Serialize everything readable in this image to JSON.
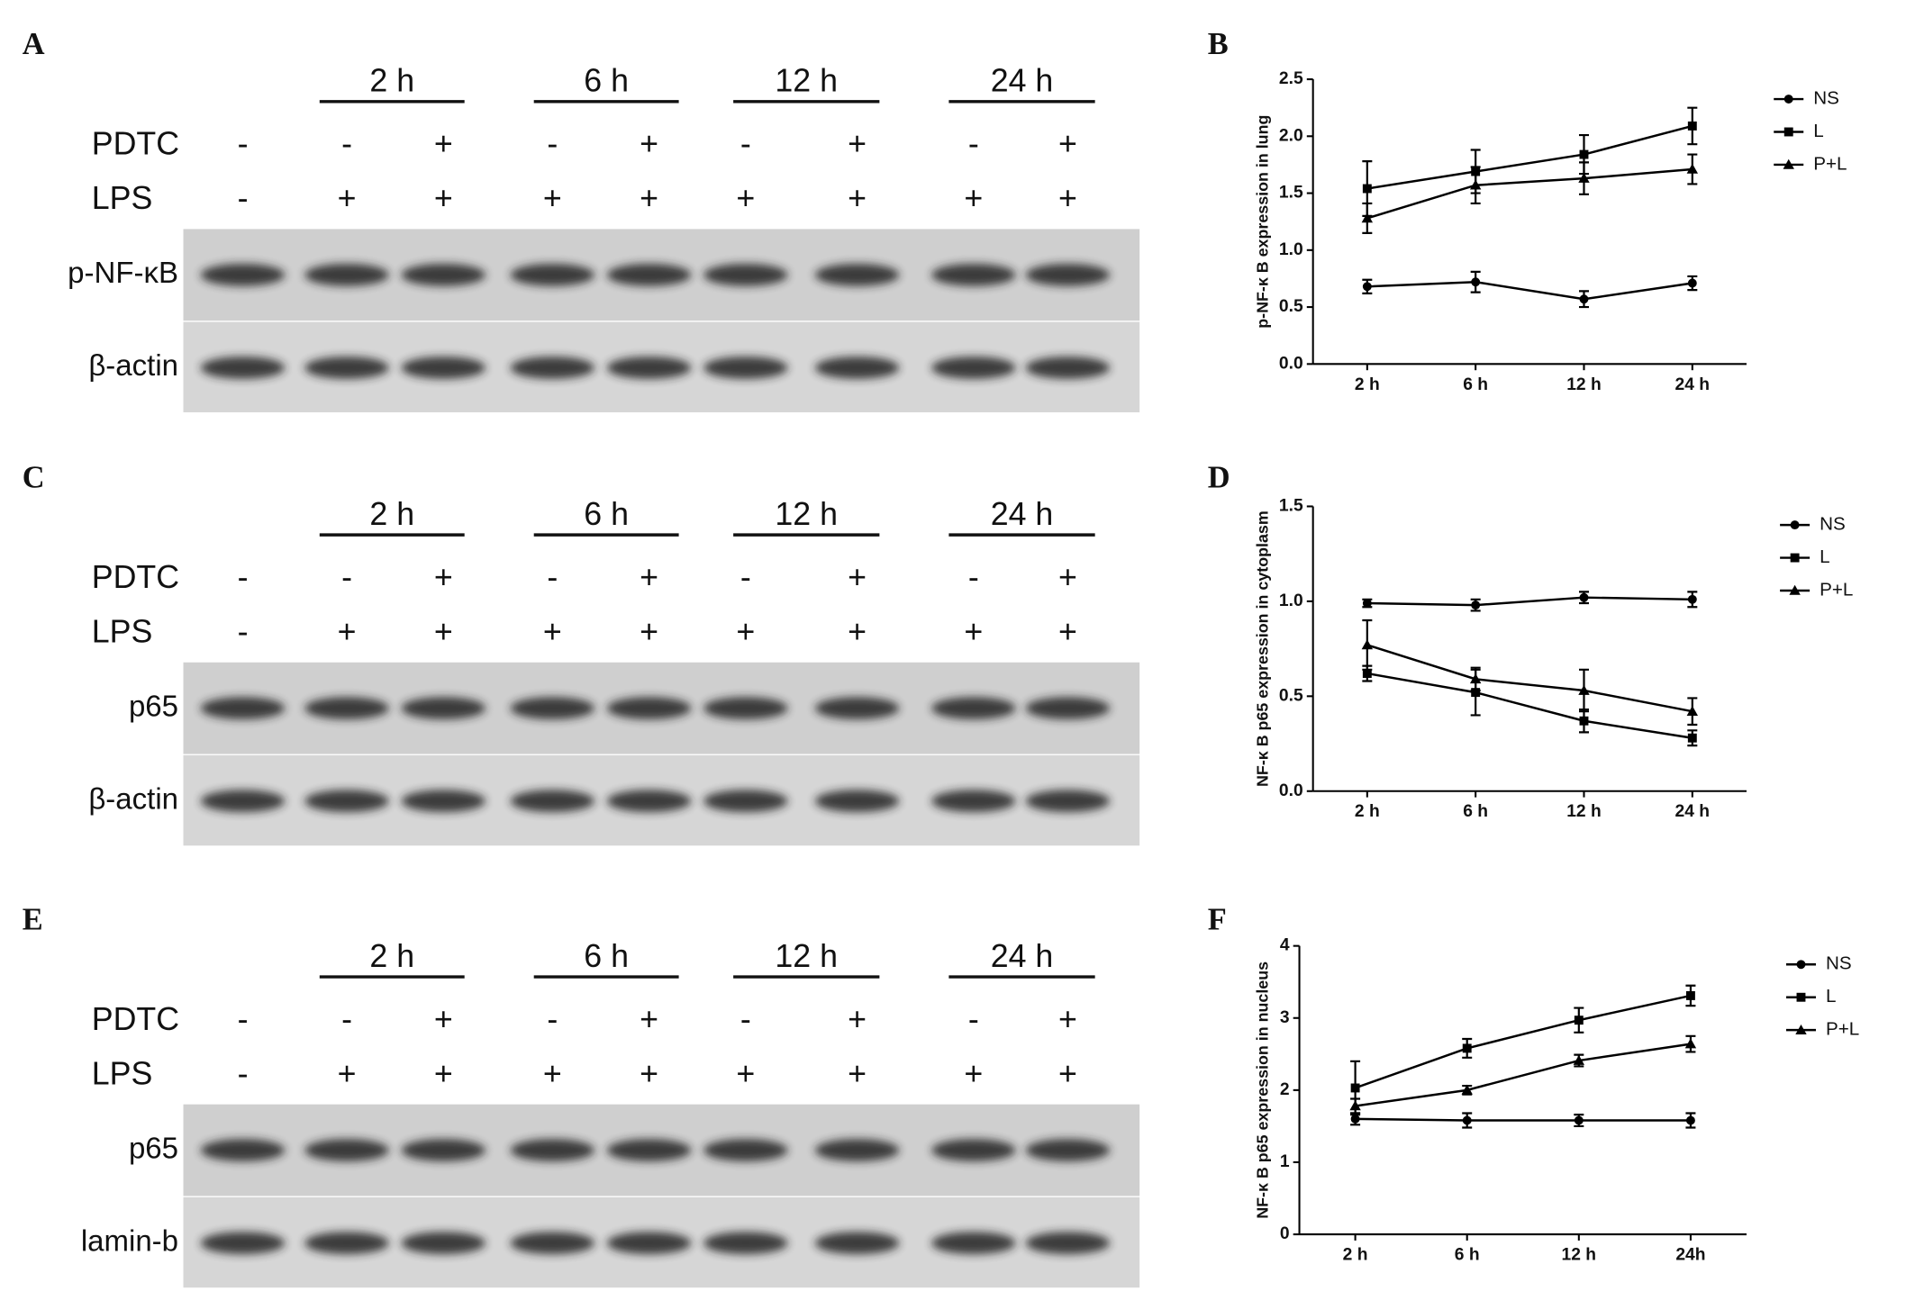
{
  "blots": [
    {
      "panel": "A",
      "timepoints": [
        "2 h",
        "6 h",
        "12 h",
        "24 h"
      ],
      "rows": [
        {
          "label": "PDTC",
          "signs": [
            "-",
            "-",
            "+",
            "-",
            "+",
            "-",
            "+",
            "-",
            "+"
          ]
        },
        {
          "label": "LPS",
          "signs": [
            "-",
            "+",
            "+",
            "+",
            "+",
            "+",
            "+",
            "+",
            "+"
          ]
        }
      ],
      "bands": [
        "p-NF-κB",
        "β-actin"
      ]
    },
    {
      "panel": "C",
      "timepoints": [
        "2 h",
        "6 h",
        "12 h",
        "24 h"
      ],
      "rows": [
        {
          "label": "PDTC",
          "signs": [
            "-",
            "-",
            "+",
            "-",
            "+",
            "-",
            "+",
            "-",
            "+"
          ]
        },
        {
          "label": "LPS",
          "signs": [
            "-",
            "+",
            "+",
            "+",
            "+",
            "+",
            "+",
            "+",
            "+"
          ]
        }
      ],
      "bands": [
        "p65",
        "β-actin"
      ]
    },
    {
      "panel": "E",
      "timepoints": [
        "2 h",
        "6 h",
        "12 h",
        "24 h"
      ],
      "rows": [
        {
          "label": "PDTC",
          "signs": [
            "-",
            "-",
            "+",
            "-",
            "+",
            "-",
            "+",
            "-",
            "+"
          ]
        },
        {
          "label": "LPS",
          "signs": [
            "-",
            "+",
            "+",
            "+",
            "+",
            "+",
            "+",
            "+",
            "+"
          ]
        }
      ],
      "bands": [
        "p65",
        "lamin-b"
      ]
    }
  ],
  "chart_data": [
    {
      "type": "line",
      "panel": "B",
      "ylabel": "p-NF-κ B expression in lung",
      "categories": [
        "2 h",
        "6 h",
        "12 h",
        "24 h"
      ],
      "series": [
        {
          "name": "NS",
          "marker": "circle",
          "color": "#000000",
          "values": [
            0.68,
            0.72,
            0.57,
            0.71
          ],
          "errors": [
            0.06,
            0.09,
            0.07,
            0.06
          ]
        },
        {
          "name": "L",
          "marker": "square",
          "color": "#000000",
          "values": [
            1.54,
            1.69,
            1.84,
            2.09
          ],
          "errors": [
            0.24,
            0.19,
            0.17,
            0.16
          ]
        },
        {
          "name": "P+L",
          "marker": "triangle",
          "color": "#000000",
          "values": [
            1.28,
            1.57,
            1.63,
            1.71
          ],
          "errors": [
            0.13,
            0.16,
            0.14,
            0.13
          ]
        }
      ],
      "ylim": [
        0,
        2.5
      ],
      "yticks": [
        {
          "value": 0,
          "label": "0.0"
        },
        0.5,
        {
          "value": 1,
          "label": "1.0"
        },
        1.5,
        {
          "value": 2,
          "label": "2.0"
        },
        2.5
      ]
    },
    {
      "type": "line",
      "panel": "D",
      "ylabel": "NF-κ B p65 expression in cytoplasm",
      "categories": [
        "2 h",
        "6 h",
        "12 h",
        "24 h"
      ],
      "series": [
        {
          "name": "NS",
          "marker": "circle",
          "color": "#000000",
          "values": [
            0.99,
            0.98,
            1.02,
            1.01
          ],
          "errors": [
            0.02,
            0.03,
            0.03,
            0.04
          ]
        },
        {
          "name": "L",
          "marker": "square",
          "color": "#000000",
          "values": [
            0.62,
            0.52,
            0.37,
            0.28
          ],
          "errors": [
            0.04,
            0.12,
            0.06,
            0.04
          ]
        },
        {
          "name": "P+L",
          "marker": "triangle",
          "color": "#000000",
          "values": [
            0.77,
            0.59,
            0.53,
            0.42
          ],
          "errors": [
            0.13,
            0.06,
            0.11,
            0.07
          ]
        }
      ],
      "ylim": [
        0,
        1.5
      ],
      "yticks": [
        {
          "value": 0,
          "label": "0.0"
        },
        0.5,
        {
          "value": 1,
          "label": "1.0"
        },
        1.5
      ]
    },
    {
      "type": "line",
      "panel": "F",
      "ylabel": "NF-κ B p65 expression in nucleus",
      "categories": [
        "2 h",
        "6 h",
        "12 h",
        "24h"
      ],
      "series": [
        {
          "name": "NS",
          "marker": "circle",
          "color": "#000000",
          "values": [
            1.6,
            1.58,
            1.58,
            1.58
          ],
          "errors": [
            0.08,
            0.1,
            0.08,
            0.1
          ]
        },
        {
          "name": "L",
          "marker": "square",
          "color": "#000000",
          "values": [
            2.03,
            2.58,
            2.97,
            3.31
          ],
          "errors": [
            0.37,
            0.13,
            0.17,
            0.14
          ]
        },
        {
          "name": "P+L",
          "marker": "triangle",
          "color": "#000000",
          "values": [
            1.78,
            2.0,
            2.41,
            2.64
          ],
          "errors": [
            0.1,
            0.06,
            0.08,
            0.11
          ]
        }
      ],
      "ylim": [
        0,
        4
      ],
      "yticks": [
        0,
        1,
        2,
        3,
        4
      ]
    }
  ]
}
